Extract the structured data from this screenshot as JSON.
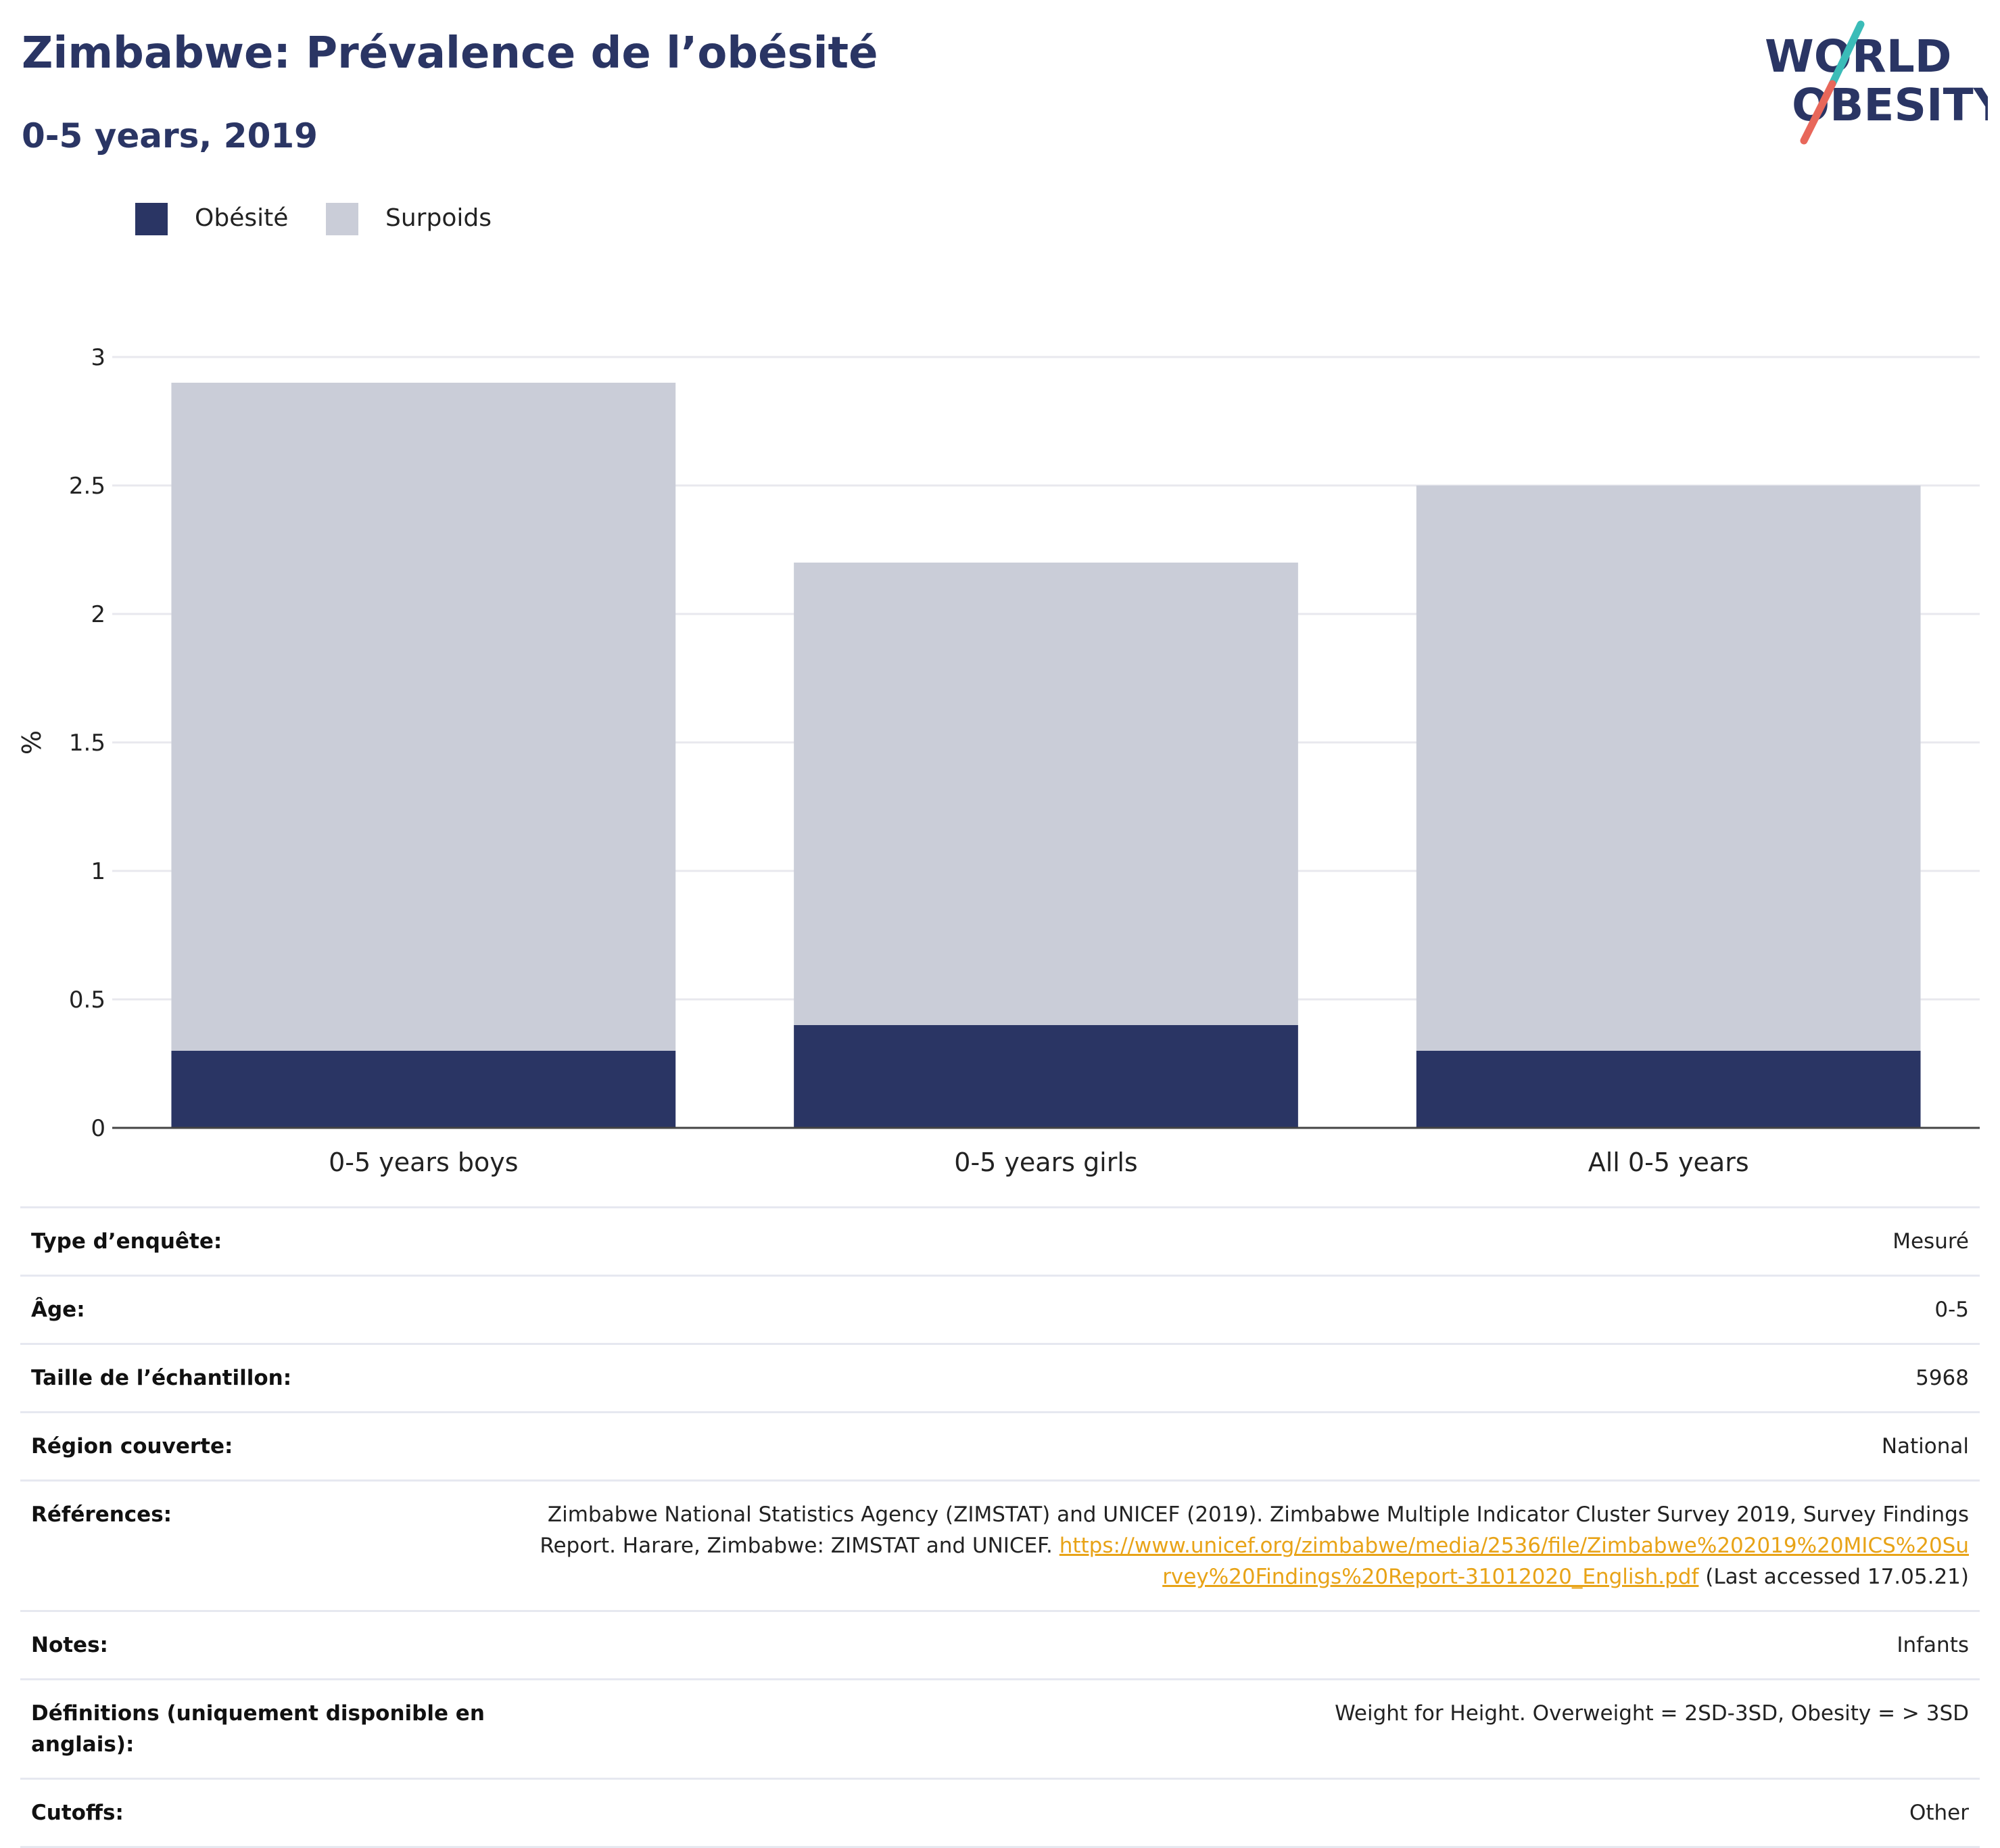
{
  "header": {
    "title": "Zimbabwe: Prévalence de l’obésité",
    "subtitle": "0-5 years, 2019"
  },
  "logo": {
    "line1": "WORLD",
    "line2": "OBESITY",
    "colors": {
      "text": "#2a3564",
      "slash_top": "#3bbcb8",
      "slash_bottom": "#e8675a"
    }
  },
  "colors": {
    "obesity": "#2a3564",
    "overweight": "#cacdd8",
    "grid": "#e8e8ee",
    "axis": "#444444"
  },
  "chart_data": {
    "type": "bar",
    "stacked": true,
    "categories": [
      "0-5 years boys",
      "0-5 years girls",
      "All 0-5 years"
    ],
    "series": [
      {
        "name": "Obésité",
        "values": [
          0.3,
          0.4,
          0.3
        ],
        "color": "#2a3564"
      },
      {
        "name": "Surpoids",
        "values": [
          2.6,
          1.8,
          2.2
        ],
        "color": "#cacdd8"
      }
    ],
    "totals": [
      2.9,
      2.2,
      2.5
    ],
    "ylabel": "%",
    "ylim": [
      0,
      3
    ],
    "yticks": [
      "0",
      "0.5",
      "1",
      "1.5",
      "2",
      "2.5",
      "3"
    ],
    "ytick_values": [
      0,
      0.5,
      1,
      1.5,
      2,
      2.5,
      3
    ],
    "grid": true,
    "legend_position": "top-left"
  },
  "info": {
    "rows": [
      {
        "label": "Type d’enquête:",
        "value": "Mesuré"
      },
      {
        "label": "Âge:",
        "value": "0-5"
      },
      {
        "label": "Taille de l’échantillon:",
        "value": "5968"
      },
      {
        "label": "Région couverte:",
        "value": "National"
      },
      {
        "label": "Références:",
        "value": "Zimbabwe National Statistics Agency (ZIMSTAT) and UNICEF (2019). Zimbabwe Multiple Indicator Cluster Survey 2019, Survey Findings Report. Harare, Zimbabwe: ZIMSTAT and UNICEF.",
        "link": "https://www.unicef.org/zimbabwe/media/2536/file/Zimbabwe%202019%20MICS%20Survey%20Findings%20Report-31012020_English.pdf",
        "suffix": "(Last accessed 17.05.21)"
      },
      {
        "label": "Notes:",
        "value": "Infants"
      },
      {
        "label": "Définitions (uniquement disponible en anglais):",
        "value": "Weight for Height. Overweight = 2SD-3SD, Obesity = > 3SD"
      },
      {
        "label": "Cutoffs:",
        "value": "Other"
      }
    ]
  }
}
